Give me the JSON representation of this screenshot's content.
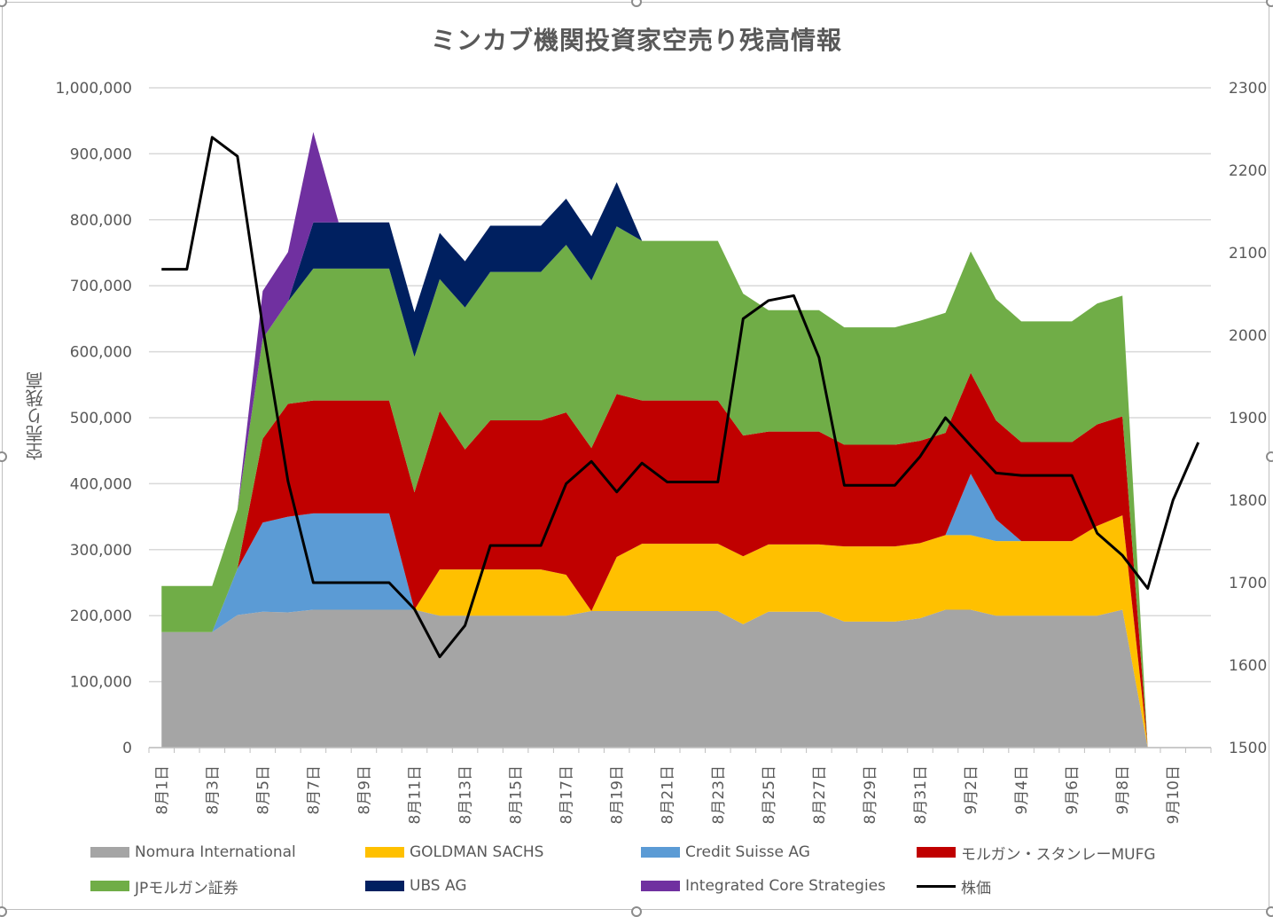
{
  "chart_data": {
    "type": "area",
    "title": "ミンカブ機関投資家空売り残高情報",
    "ylabel": "空売り残高",
    "y2label": "",
    "ylim": [
      0,
      1000000
    ],
    "y2lim": [
      1500,
      2300
    ],
    "yticks": [
      "0",
      "100,000",
      "200,000",
      "300,000",
      "400,000",
      "500,000",
      "600,000",
      "700,000",
      "800,000",
      "900,000",
      "1,000,000"
    ],
    "y2ticks": [
      "1500",
      "1600",
      "1700",
      "1800",
      "1900",
      "2000",
      "2100",
      "2200",
      "2300"
    ],
    "grid": true,
    "legend_position": "bottom",
    "categories": [
      "8月1日",
      "8月2日",
      "8月3日",
      "8月4日",
      "8月5日",
      "8月6日",
      "8月7日",
      "8月8日",
      "8月9日",
      "8月10日",
      "8月11日",
      "8月12日",
      "8月13日",
      "8月14日",
      "8月15日",
      "8月16日",
      "8月17日",
      "8月18日",
      "8月19日",
      "8月20日",
      "8月21日",
      "8月22日",
      "8月23日",
      "8月24日",
      "8月25日",
      "8月26日",
      "8月27日",
      "8月28日",
      "8月29日",
      "8月30日",
      "8月31日",
      "9月1日",
      "9月2日",
      "9月3日",
      "9月4日",
      "9月5日",
      "9月6日",
      "9月7日",
      "9月8日",
      "9月9日",
      "9月10日",
      "9月11日"
    ],
    "tick_labels": [
      "8月1日",
      "8月3日",
      "8月5日",
      "8月7日",
      "8月9日",
      "8月11日",
      "8月13日",
      "8月15日",
      "8月17日",
      "8月19日",
      "8月21日",
      "8月23日",
      "8月25日",
      "8月27日",
      "8月29日",
      "8月31日",
      "9月2日",
      "9月4日",
      "9月6日",
      "9月8日",
      "9月10日"
    ],
    "series": [
      {
        "name": "Nomura International",
        "color": "#a5a5a5",
        "values": [
          175000,
          175000,
          175000,
          201000,
          206000,
          205000,
          209000,
          209000,
          209000,
          209000,
          209000,
          200000,
          200000,
          200000,
          200000,
          200000,
          200000,
          207000,
          207000,
          207000,
          207000,
          207000,
          207000,
          187000,
          206000,
          206000,
          206000,
          191000,
          191000,
          191000,
          196000,
          209000,
          209000,
          200000,
          200000,
          200000,
          200000,
          200000,
          209000,
          0,
          0,
          0
        ]
      },
      {
        "name": "GOLDMAN SACHS",
        "color": "#ffc000",
        "values": [
          0,
          0,
          0,
          0,
          0,
          0,
          0,
          0,
          0,
          0,
          0,
          70000,
          70000,
          70000,
          70000,
          70000,
          62000,
          0,
          82000,
          102000,
          102000,
          102000,
          102000,
          103000,
          102000,
          102000,
          102000,
          114000,
          114000,
          114000,
          114000,
          113000,
          113000,
          113000,
          113000,
          113000,
          113000,
          136000,
          143000,
          0,
          0,
          0
        ]
      },
      {
        "name": "Credit Suisse AG",
        "color": "#5b9bd5",
        "values": [
          0,
          0,
          0,
          70000,
          135000,
          145000,
          146000,
          146000,
          146000,
          146000,
          0,
          0,
          0,
          0,
          0,
          0,
          0,
          0,
          0,
          0,
          0,
          0,
          0,
          0,
          0,
          0,
          0,
          0,
          0,
          0,
          0,
          0,
          93000,
          33000,
          0,
          0,
          0,
          0,
          0,
          0,
          0,
          0
        ]
      },
      {
        "name": "モルガン・スタンレーMUFG",
        "color": "#c00000",
        "values": [
          0,
          0,
          0,
          0,
          127000,
          171000,
          171000,
          171000,
          171000,
          171000,
          178000,
          240000,
          182000,
          226000,
          226000,
          226000,
          246000,
          247000,
          247000,
          217000,
          217000,
          217000,
          217000,
          183000,
          171000,
          171000,
          171000,
          154000,
          154000,
          154000,
          155000,
          155000,
          153000,
          150000,
          150000,
          150000,
          150000,
          154000,
          150000,
          0,
          0,
          0
        ]
      },
      {
        "name": "JPモルガン証券",
        "color": "#70ad47",
        "values": [
          70000,
          70000,
          70000,
          90000,
          152000,
          155000,
          200000,
          200000,
          200000,
          200000,
          205000,
          200000,
          215000,
          225000,
          225000,
          225000,
          254000,
          254000,
          254000,
          242000,
          242000,
          242000,
          242000,
          215000,
          184000,
          184000,
          184000,
          178000,
          178000,
          178000,
          182000,
          182000,
          184000,
          184000,
          183000,
          183000,
          183000,
          183000,
          183000,
          0,
          0,
          0
        ]
      },
      {
        "name": "UBS AG",
        "color": "#002060",
        "values": [
          0,
          0,
          0,
          0,
          0,
          0,
          70000,
          70000,
          70000,
          70000,
          68000,
          70000,
          70000,
          70000,
          70000,
          70000,
          70000,
          67000,
          67000,
          0,
          0,
          0,
          0,
          0,
          0,
          0,
          0,
          0,
          0,
          0,
          0,
          0,
          0,
          0,
          0,
          0,
          0,
          0,
          0,
          0,
          0,
          0
        ]
      },
      {
        "name": "Integrated Core Strategies",
        "color": "#7030a0",
        "values": [
          0,
          0,
          0,
          0,
          72000,
          75000,
          137000,
          0,
          0,
          0,
          0,
          0,
          0,
          0,
          0,
          0,
          0,
          0,
          0,
          0,
          0,
          0,
          0,
          0,
          0,
          0,
          0,
          0,
          0,
          0,
          0,
          0,
          0,
          0,
          0,
          0,
          0,
          0,
          0,
          0,
          0,
          0
        ]
      }
    ],
    "line_series": {
      "name": "株価",
      "color": "#000000",
      "axis": "secondary",
      "values": [
        2080,
        2080,
        2240,
        2217,
        2010,
        1823,
        1700,
        1700,
        1700,
        1700,
        1668,
        1610,
        1648,
        1745,
        1745,
        1745,
        1820,
        1847,
        1810,
        1845,
        1822,
        1822,
        1822,
        2020,
        2042,
        2048,
        1973,
        1818,
        1818,
        1818,
        1853,
        1900,
        1866,
        1833,
        1830,
        1830,
        1830,
        1760,
        1733,
        1693,
        1800,
        1870
      ]
    }
  }
}
